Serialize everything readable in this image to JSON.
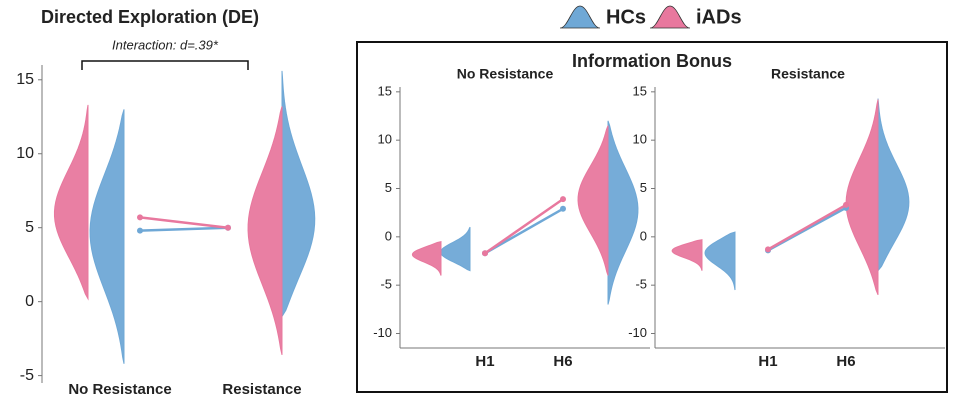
{
  "chart_data": [
    {
      "type": "raincloud",
      "title": "Directed Exploration (DE)",
      "annotation": "Interaction: d=.39*",
      "categories": [
        "No Resistance",
        "Resistance"
      ],
      "series": [
        {
          "name": "HCs",
          "color": "#6fa8d6",
          "values": [
            4.8,
            5.0
          ],
          "ranges": [
            [
              -4.2,
              13.0
            ],
            [
              -1.0,
              15.6
            ]
          ]
        },
        {
          "name": "iADs",
          "color": "#e8789e",
          "values": [
            5.7,
            5.0
          ],
          "ranges": [
            [
              0.2,
              13.3
            ],
            [
              -3.6,
              13.2
            ]
          ]
        }
      ],
      "ylim": [
        -5.5,
        16
      ],
      "yticks": [
        -5,
        0,
        5,
        10,
        15
      ]
    },
    {
      "type": "raincloud",
      "title": "Information Bonus",
      "subtitle": "No Resistance",
      "categories": [
        "H1",
        "H6"
      ],
      "series": [
        {
          "color": "#6fa8d6",
          "values": [
            -1.7,
            2.9
          ],
          "ranges": [
            [
              -3.5,
              1.0
            ],
            [
              -7.0,
              12.0
            ]
          ]
        },
        {
          "color": "#e8789e",
          "values": [
            -1.7,
            3.9
          ],
          "ranges": [
            [
              -4.0,
              -0.5
            ],
            [
              -4.0,
              11.5
            ]
          ]
        }
      ],
      "ylim": [
        -11.5,
        15.5
      ],
      "yticks": [
        -10,
        -5,
        0,
        5,
        10,
        15
      ]
    },
    {
      "type": "raincloud",
      "subtitle": "Resistance",
      "categories": [
        "H1",
        "H6"
      ],
      "series": [
        {
          "color": "#6fa8d6",
          "values": [
            -1.4,
            3.0
          ],
          "ranges": [
            [
              -5.5,
              0.5
            ],
            [
              -3.5,
              14.3
            ]
          ]
        },
        {
          "color": "#e8789e",
          "values": [
            -1.3,
            3.3
          ],
          "ranges": [
            [
              -3.5,
              -0.3
            ],
            [
              -6.0,
              14.2
            ]
          ]
        }
      ],
      "ylim": [
        -11.5,
        15.5
      ],
      "yticks": [
        -10,
        -5,
        0,
        5,
        10,
        15
      ]
    }
  ]
}
